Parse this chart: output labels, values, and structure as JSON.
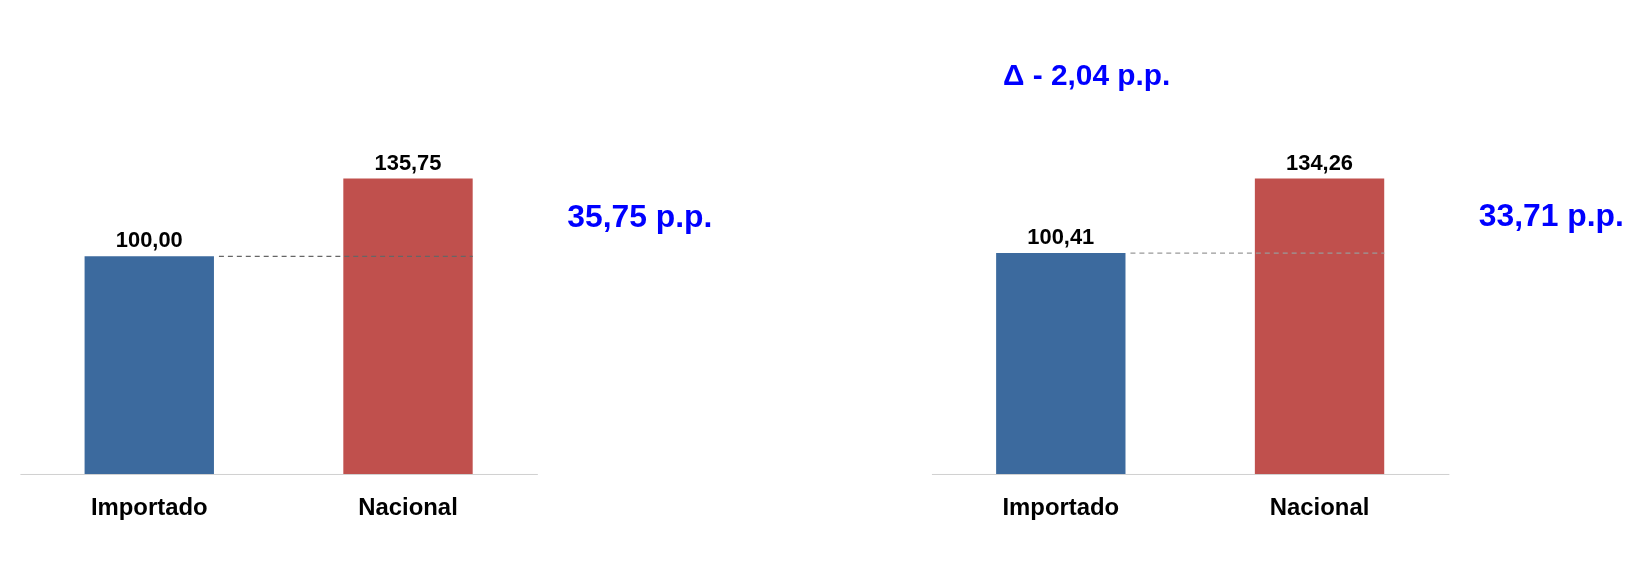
{
  "chart_data": [
    {
      "type": "bar",
      "categories": [
        "Importado",
        "Nacional"
      ],
      "values": [
        100.0,
        135.75
      ],
      "colors": [
        "#3c6a9e",
        "#c0504d"
      ],
      "value_labels": [
        "100,00",
        "135,75"
      ],
      "ref_lines": [
        {
          "axis": "y",
          "value": 100.0,
          "line_style": "dashed",
          "color": "#666666"
        }
      ],
      "annotations": [
        "35,75 p.p."
      ],
      "legend": false,
      "grid": false
    },
    {
      "type": "bar",
      "categories": [
        "Importado",
        "Nacional"
      ],
      "values": [
        100.41,
        134.26
      ],
      "colors": [
        "#3c6a9e",
        "#c0504d"
      ],
      "value_labels": [
        "100,41",
        "134,26"
      ],
      "ref_lines": [
        {
          "axis": "y",
          "value": 100.41,
          "line_style": "dashed",
          "color": "#999999"
        }
      ],
      "annotations": [
        "33,71 p.p.",
        "Δ - 2,04 p.p."
      ],
      "legend": false,
      "grid": false
    }
  ]
}
